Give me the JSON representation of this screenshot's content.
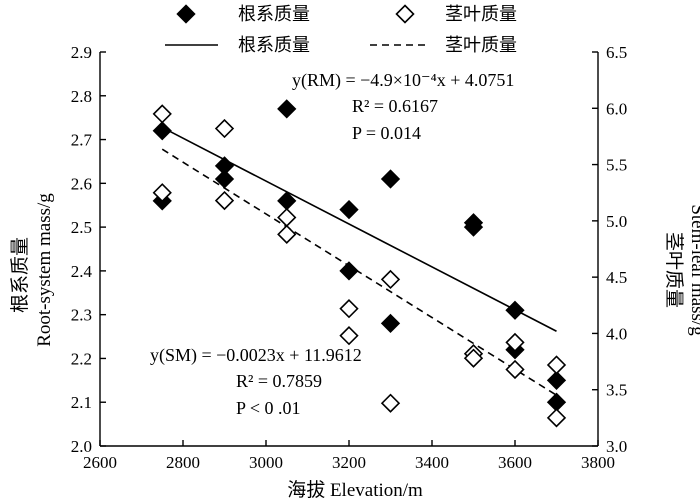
{
  "chart_data": {
    "type": "scatter",
    "title": "",
    "xlabel": "海拔 Elevation/m",
    "ylabel_left": "根系质量 Root-system mass/g",
    "ylabel_left_cn": "根系质量",
    "ylabel_left_en": "Root-system mass/g",
    "ylabel_right": "茎叶质量 Stem-leaf mass/g",
    "ylabel_right_cn": "茎叶质量",
    "ylabel_right_en": "Stem-leaf mass/g",
    "xlim": [
      2600,
      3800
    ],
    "ylim_left": [
      2.0,
      2.9
    ],
    "ylim_right": [
      3.0,
      6.5
    ],
    "x_ticks": [
      "2600",
      "2800",
      "3000",
      "3200",
      "3400",
      "3600",
      "3800"
    ],
    "y_left_ticks": [
      "2.0",
      "2.1",
      "2.2",
      "2.3",
      "2.4",
      "2.5",
      "2.6",
      "2.7",
      "2.8",
      "2.9"
    ],
    "y_right_ticks": [
      "3.0",
      "3.5",
      "4.0",
      "4.5",
      "5.0",
      "5.5",
      "6.0",
      "6.5"
    ],
    "grid": false,
    "legend_position": "top",
    "series": [
      {
        "name": "根系质量",
        "kind": "points",
        "axis": "left",
        "marker": "filled-diamond",
        "x": [
          2750,
          2750,
          2900,
          2900,
          3050,
          3050,
          3200,
          3200,
          3300,
          3300,
          3500,
          3500,
          3600,
          3600,
          3700,
          3700
        ],
        "y": [
          2.72,
          2.56,
          2.64,
          2.61,
          2.77,
          2.56,
          2.54,
          2.4,
          2.61,
          2.28,
          2.51,
          2.5,
          2.31,
          2.22,
          2.15,
          2.1
        ]
      },
      {
        "name": "茎叶质量",
        "kind": "points",
        "axis": "right",
        "marker": "open-diamond",
        "x": [
          2750,
          2750,
          2900,
          2900,
          3050,
          3050,
          3200,
          3200,
          3300,
          3300,
          3500,
          3500,
          3600,
          3600,
          3700,
          3700
        ],
        "y": [
          5.95,
          5.25,
          5.82,
          5.18,
          5.03,
          4.88,
          4.22,
          3.98,
          4.48,
          3.38,
          3.82,
          3.78,
          3.92,
          3.68,
          3.72,
          3.25
        ]
      },
      {
        "name": "根系质量",
        "kind": "fit",
        "axis": "left",
        "style": "solid",
        "x": [
          2750,
          3700
        ],
        "y": [
          2.7276,
          2.2621
        ]
      },
      {
        "name": "茎叶质量",
        "kind": "fit",
        "axis": "right",
        "style": "dashed",
        "x": [
          2750,
          3700
        ],
        "y": [
          5.6362,
          3.4512
        ]
      }
    ],
    "annotations": {
      "rm_eq": "y(RM) = −4.9×10⁻⁴x + 4.0751",
      "rm_r2": "R² = 0.6167",
      "rm_p": "P = 0.014",
      "sm_eq": "y(SM) = −0.0023x + 11.9612",
      "sm_r2": "R² = 0.7859",
      "sm_p": "P < 0 .01"
    },
    "legend": [
      {
        "label": "根系质量",
        "symbol": "filled-diamond"
      },
      {
        "label": "茎叶质量",
        "symbol": "open-diamond"
      },
      {
        "label": "根系质量",
        "symbol": "solid-line"
      },
      {
        "label": "茎叶质量",
        "symbol": "dashed-line"
      }
    ]
  }
}
